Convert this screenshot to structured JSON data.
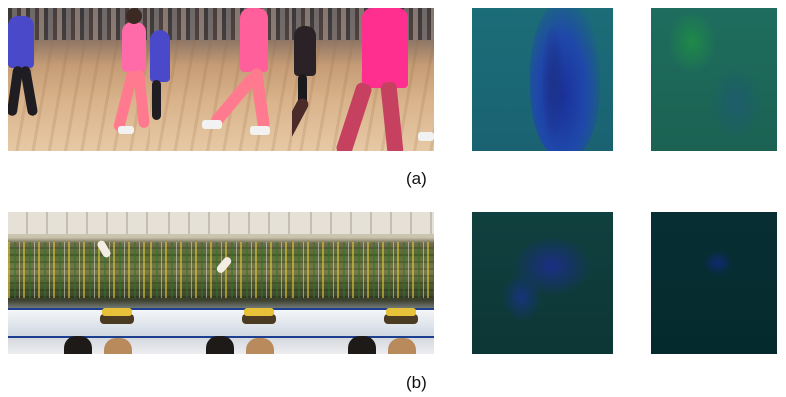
{
  "figure": {
    "row_a": {
      "caption": "(a)",
      "frame_count": 3,
      "map_colors": {
        "map1_base": "#1b6a76",
        "map1_blob": "#1f3fa1",
        "map2_base": "#1c6659",
        "map2_blob": "#1f7d4f"
      }
    },
    "row_b": {
      "caption": "(b)",
      "frame_count": 3,
      "map_colors": {
        "map1_base": "#0f3a3a",
        "map1_blob": "#1b2f86",
        "map2_base": "#062d31",
        "map2_blob": "#0f2a70"
      }
    }
  }
}
